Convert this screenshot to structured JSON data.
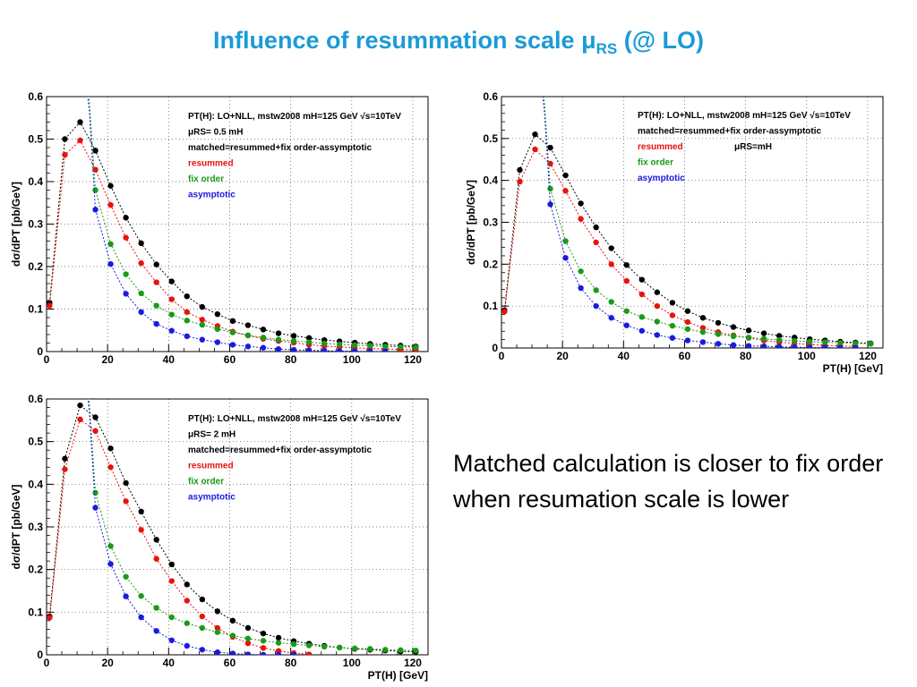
{
  "title": {
    "main": "Influence of resummation scale ",
    "mu": "μ",
    "sub": "RS",
    "suffix": " (@ LO)"
  },
  "note": "Matched calculation is closer to fix order when resumation scale is lower",
  "colors": {
    "title": "#1a9bd7",
    "matched": "#000000",
    "resummed": "#e8120c",
    "fixorder": "#1a9a1a",
    "asymptotic": "#1a1ae0"
  },
  "chart_data": [
    {
      "type": "scatter",
      "scale_label": "μRS = 0.5 mH",
      "ylabel": "dσ/dPT [pb/GeV]",
      "xlabel": "",
      "xlim": [
        0,
        125
      ],
      "ylim": [
        0,
        0.6
      ],
      "xticks": [
        "0",
        "20",
        "40",
        "60",
        "80",
        "100",
        "120"
      ],
      "yticks": [
        "0",
        "0.1",
        "0.2",
        "0.3",
        "0.4",
        "0.5",
        "0.6"
      ],
      "grid": true,
      "legend": {
        "line1": "PT(H): LO+NLL, mstw2008 mH=125 GeV √s=10TeV",
        "scale": "μRS= 0.5 mH",
        "entries": [
          "matched=resummed+fix order-assymptotic",
          "resummed",
          "fix order",
          "asymptotic"
        ]
      },
      "series": [
        {
          "name": "matched",
          "x": [
            1,
            6,
            11,
            16,
            21,
            26,
            31,
            36,
            41,
            46,
            51,
            56,
            61,
            66,
            71,
            76,
            81,
            86,
            91,
            96,
            101,
            106,
            111,
            116,
            121
          ],
          "y": [
            0.115,
            0.5,
            0.54,
            0.473,
            0.39,
            0.315,
            0.255,
            0.205,
            0.165,
            0.13,
            0.105,
            0.088,
            0.072,
            0.062,
            0.052,
            0.043,
            0.037,
            0.032,
            0.027,
            0.024,
            0.021,
            0.018,
            0.016,
            0.014,
            0.012
          ]
        },
        {
          "name": "resummed",
          "x": [
            1,
            6,
            11,
            16,
            21,
            26,
            31,
            36,
            41,
            46,
            51,
            56,
            61,
            66,
            71,
            76,
            81,
            86,
            91,
            96,
            101,
            106,
            111,
            116,
            121
          ],
          "y": [
            0.108,
            0.463,
            0.497,
            0.428,
            0.345,
            0.268,
            0.208,
            0.163,
            0.123,
            0.093,
            0.075,
            0.06,
            0.047,
            0.038,
            0.03,
            0.025,
            0.021,
            0.016,
            0.013,
            0.011,
            0.009,
            0.007,
            0.006,
            0.005,
            0.004
          ]
        },
        {
          "name": "fix order",
          "x": [
            16,
            21,
            26,
            31,
            36,
            41,
            46,
            51,
            56,
            61,
            66,
            71,
            76,
            81,
            86,
            91,
            96,
            101,
            106,
            111,
            116,
            121
          ],
          "y": [
            0.38,
            0.253,
            0.182,
            0.137,
            0.108,
            0.087,
            0.073,
            0.063,
            0.053,
            0.045,
            0.038,
            0.033,
            0.028,
            0.025,
            0.022,
            0.019,
            0.017,
            0.015,
            0.014,
            0.012,
            0.011,
            0.01
          ]
        },
        {
          "name": "asymptotic",
          "x": [
            16,
            21,
            26,
            31,
            36,
            41,
            46,
            51,
            56,
            61,
            66,
            71,
            76,
            81,
            86,
            91,
            96,
            101,
            106,
            111
          ],
          "y": [
            0.334,
            0.206,
            0.136,
            0.093,
            0.065,
            0.049,
            0.036,
            0.028,
            0.022,
            0.016,
            0.012,
            0.009,
            0.006,
            0.004,
            0.003,
            0.002,
            0.001,
            0.001,
            0.0,
            0.0
          ]
        }
      ]
    },
    {
      "type": "scatter",
      "scale_label": "μRS = mH",
      "ylabel": "dσ/dPT [pb/GeV]",
      "xlabel": "PT(H) [GeV]",
      "xlim": [
        0,
        125
      ],
      "ylim": [
        0,
        0.6
      ],
      "xticks": [
        "0",
        "20",
        "40",
        "60",
        "80",
        "100",
        "120"
      ],
      "yticks": [
        "0",
        "0.1",
        "0.2",
        "0.3",
        "0.4",
        "0.5",
        "0.6"
      ],
      "grid": true,
      "legend": {
        "line1": "PT(H): LO+NLL, mstw2008 mH=125 GeV √s=10TeV",
        "scale": "μRS=mH",
        "entries": [
          "matched=resummed+fix order-assymptotic",
          "resummed",
          "fix order",
          "asymptotic"
        ]
      },
      "series": [
        {
          "name": "matched",
          "x": [
            1,
            6,
            11,
            16,
            21,
            26,
            31,
            36,
            41,
            46,
            51,
            56,
            61,
            66,
            71,
            76,
            81,
            86,
            91,
            96,
            101,
            106,
            111,
            116,
            121
          ],
          "y": [
            0.09,
            0.425,
            0.51,
            0.478,
            0.412,
            0.345,
            0.288,
            0.238,
            0.198,
            0.163,
            0.133,
            0.108,
            0.088,
            0.072,
            0.06,
            0.05,
            0.042,
            0.035,
            0.029,
            0.025,
            0.021,
            0.018,
            0.015,
            0.013,
            0.011
          ]
        },
        {
          "name": "resummed",
          "x": [
            1,
            6,
            11,
            16,
            21,
            26,
            31,
            36,
            41,
            46,
            51,
            56,
            61,
            66,
            71,
            76,
            81,
            86,
            91,
            96,
            101,
            106,
            111,
            116
          ],
          "y": [
            0.087,
            0.397,
            0.474,
            0.44,
            0.375,
            0.308,
            0.252,
            0.2,
            0.16,
            0.128,
            0.1,
            0.078,
            0.062,
            0.048,
            0.038,
            0.03,
            0.024,
            0.018,
            0.014,
            0.011,
            0.008,
            0.006,
            0.005,
            0.003
          ]
        },
        {
          "name": "fix order",
          "x": [
            16,
            21,
            26,
            31,
            36,
            41,
            46,
            51,
            56,
            61,
            66,
            71,
            76,
            81,
            86,
            91,
            96,
            101,
            106,
            111,
            116,
            121
          ],
          "y": [
            0.38,
            0.255,
            0.183,
            0.138,
            0.11,
            0.088,
            0.074,
            0.063,
            0.053,
            0.045,
            0.038,
            0.033,
            0.028,
            0.025,
            0.022,
            0.019,
            0.017,
            0.015,
            0.014,
            0.012,
            0.011,
            0.01
          ]
        },
        {
          "name": "asymptotic",
          "x": [
            16,
            21,
            26,
            31,
            36,
            41,
            46,
            51,
            56,
            61,
            66,
            71,
            76,
            81,
            86,
            91,
            96,
            101,
            106,
            111,
            116
          ],
          "y": [
            0.343,
            0.215,
            0.143,
            0.1,
            0.072,
            0.054,
            0.041,
            0.031,
            0.024,
            0.018,
            0.014,
            0.01,
            0.007,
            0.005,
            0.004,
            0.003,
            0.002,
            0.001,
            0.001,
            0.0,
            0.0
          ]
        }
      ]
    },
    {
      "type": "scatter",
      "scale_label": "μRS = 2 mH",
      "ylabel": "dσ/dPT [pb/GeV]",
      "xlabel": "PT(H) [GeV]",
      "xlim": [
        0,
        125
      ],
      "ylim": [
        0,
        0.6
      ],
      "xticks": [
        "0",
        "20",
        "40",
        "60",
        "80",
        "100",
        "120"
      ],
      "yticks": [
        "0",
        "0.1",
        "0.2",
        "0.3",
        "0.4",
        "0.5",
        "0.6"
      ],
      "grid": true,
      "legend": {
        "line1": "PT(H): LO+NLL, mstw2008 mH=125 GeV √s=10TeV",
        "scale": "μRS= 2 mH",
        "entries": [
          "matched=resummed+fix order-assymptotic",
          "resummed",
          "fix order",
          "asymptotic"
        ]
      },
      "series": [
        {
          "name": "matched",
          "x": [
            1,
            6,
            11,
            16,
            21,
            26,
            31,
            36,
            41,
            46,
            51,
            56,
            61,
            66,
            71,
            76,
            81,
            86,
            91,
            96,
            101,
            106,
            111,
            116,
            121
          ],
          "y": [
            0.09,
            0.46,
            0.585,
            0.557,
            0.484,
            0.403,
            0.336,
            0.27,
            0.212,
            0.165,
            0.13,
            0.102,
            0.08,
            0.063,
            0.05,
            0.04,
            0.032,
            0.026,
            0.021,
            0.017,
            0.014,
            0.012,
            0.01,
            0.008,
            0.007
          ]
        },
        {
          "name": "resummed",
          "x": [
            1,
            6,
            11,
            16,
            21,
            26,
            31,
            36,
            41,
            46,
            51,
            56,
            61,
            66,
            71,
            76,
            81,
            86
          ],
          "y": [
            0.087,
            0.435,
            0.552,
            0.525,
            0.44,
            0.36,
            0.293,
            0.225,
            0.173,
            0.127,
            0.09,
            0.063,
            0.042,
            0.027,
            0.016,
            0.009,
            0.004,
            0.001
          ]
        },
        {
          "name": "fix order",
          "x": [
            16,
            21,
            26,
            31,
            36,
            41,
            46,
            51,
            56,
            61,
            66,
            71,
            76,
            81,
            86,
            91,
            96,
            101,
            106,
            111,
            116,
            121
          ],
          "y": [
            0.38,
            0.255,
            0.183,
            0.138,
            0.11,
            0.088,
            0.074,
            0.063,
            0.053,
            0.045,
            0.038,
            0.033,
            0.028,
            0.025,
            0.022,
            0.019,
            0.017,
            0.015,
            0.014,
            0.012,
            0.011,
            0.01
          ]
        },
        {
          "name": "asymptotic",
          "x": [
            16,
            21,
            26,
            31,
            36,
            41,
            46,
            51,
            56,
            61,
            66,
            71,
            76,
            81
          ],
          "y": [
            0.345,
            0.213,
            0.137,
            0.088,
            0.056,
            0.034,
            0.021,
            0.012,
            0.006,
            0.003,
            0.001,
            0.0,
            0.0,
            0.0
          ]
        }
      ]
    }
  ]
}
